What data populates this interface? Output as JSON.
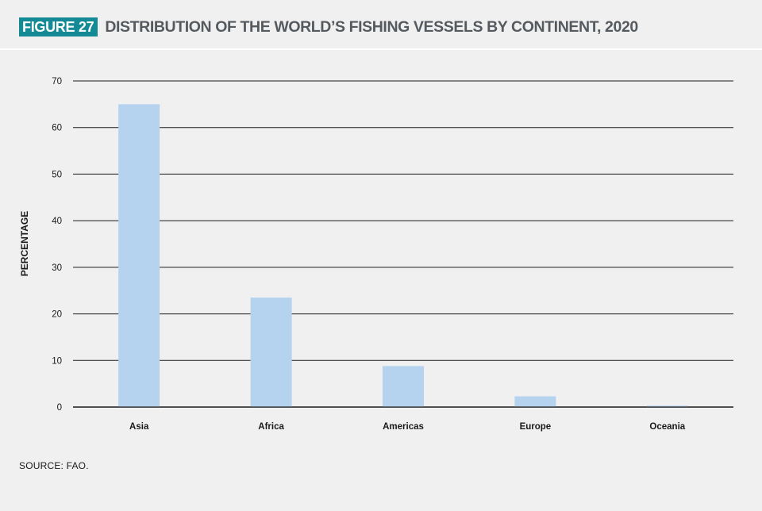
{
  "header": {
    "figure_label": "FIGURE 27",
    "title": "DISTRIBUTION OF THE WORLD’S FISHING VESSELS BY CONTINENT, 2020"
  },
  "source": "SOURCE: FAO.",
  "colors": {
    "badge": "#138a96",
    "bar": "#b5d3ef",
    "grid": "#1a1a1a",
    "background": "#f0f0f0"
  },
  "chart_data": {
    "type": "bar",
    "title": "DISTRIBUTION OF THE WORLD’S FISHING VESSELS BY CONTINENT, 2020",
    "xlabel": "",
    "ylabel": "PERCENTAGE",
    "categories": [
      "Asia",
      "Africa",
      "Americas",
      "Europe",
      "Oceania"
    ],
    "values": [
      65,
      23.5,
      8.8,
      2.3,
      0.3
    ],
    "ylim": [
      0,
      70
    ],
    "yticks": [
      0,
      10,
      20,
      30,
      40,
      50,
      60,
      70
    ],
    "grid": true,
    "legend": "none"
  }
}
